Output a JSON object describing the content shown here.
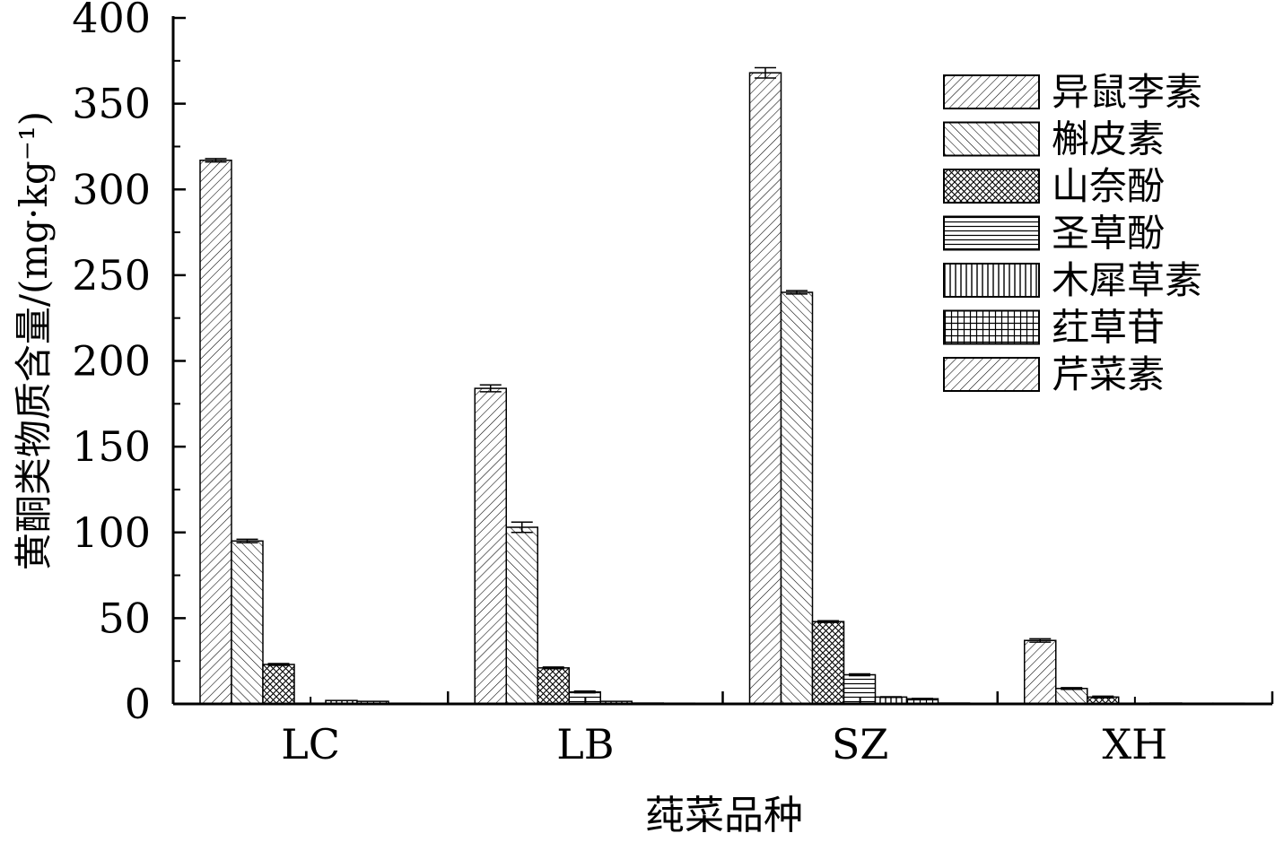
{
  "chart_data": {
    "type": "bar",
    "title": "",
    "xlabel": "莼菜品种",
    "ylabel": "黄酮类物质含量/(mg·kg⁻¹)",
    "ylim": [
      0,
      400
    ],
    "yticks": [
      0,
      50,
      100,
      150,
      200,
      250,
      300,
      350,
      400
    ],
    "categories": [
      "LC",
      "LB",
      "SZ",
      "XH"
    ],
    "grid": false,
    "legend_position": "top-right",
    "series": [
      {
        "name": "异鼠李素",
        "pattern": "diag-up",
        "values": [
          317,
          184,
          368,
          37
        ],
        "errors": [
          1,
          2,
          3,
          1
        ]
      },
      {
        "name": "槲皮素",
        "pattern": "diag-down",
        "values": [
          95,
          103,
          240,
          9
        ],
        "errors": [
          1,
          3,
          1,
          0.5
        ]
      },
      {
        "name": "山奈酚",
        "pattern": "crosshatch",
        "values": [
          23,
          21,
          48,
          4
        ],
        "errors": [
          0.5,
          0.5,
          0.5,
          0.5
        ]
      },
      {
        "name": "圣草酚",
        "pattern": "horizontal",
        "values": [
          0,
          7,
          17,
          0
        ],
        "errors": [
          0,
          0.5,
          0.5,
          0
        ]
      },
      {
        "name": "木犀草素",
        "pattern": "vertical",
        "values": [
          2,
          1.5,
          4,
          0.5
        ],
        "errors": [
          0,
          0,
          0.2,
          0
        ]
      },
      {
        "name": "荭草苷",
        "pattern": "grid",
        "values": [
          1.5,
          0.5,
          3,
          0.3
        ],
        "errors": [
          0,
          0,
          0.2,
          0
        ]
      },
      {
        "name": "芹菜素",
        "pattern": "diag-up",
        "values": [
          0.3,
          0.2,
          0.5,
          0.2
        ],
        "errors": [
          0,
          0,
          0,
          0
        ]
      }
    ]
  }
}
